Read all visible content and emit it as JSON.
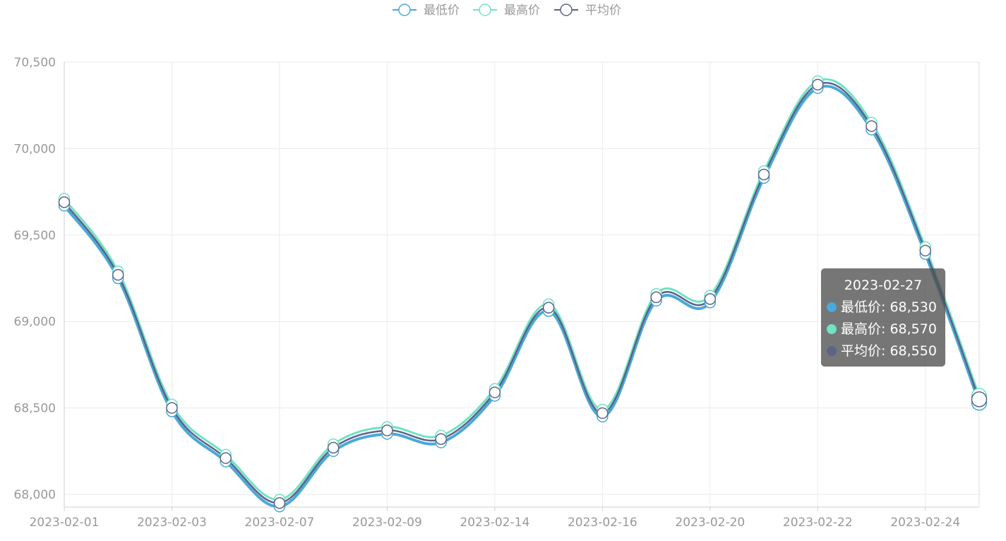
{
  "chart_data": {
    "type": "line",
    "smooth": true,
    "x": [
      "2023-02-01",
      "2023-02-02",
      "2023-02-03",
      "2023-02-06",
      "2023-02-07",
      "2023-02-08",
      "2023-02-09",
      "2023-02-10",
      "2023-02-14",
      "2023-02-15",
      "2023-02-16",
      "2023-02-17",
      "2023-02-20",
      "2023-02-21",
      "2023-02-22",
      "2023-02-23",
      "2023-02-24",
      "2023-02-27"
    ],
    "x_tick_labels": [
      "2023-02-01",
      "2023-02-03",
      "2023-02-07",
      "2023-02-09",
      "2023-02-14",
      "2023-02-16",
      "2023-02-20",
      "2023-02-22",
      "2023-02-24"
    ],
    "series": [
      {
        "name": "最低价",
        "color": "#4aa9d8",
        "values": [
          69670,
          69250,
          68480,
          68190,
          67930,
          68250,
          68350,
          68300,
          68570,
          69060,
          68450,
          69120,
          69110,
          69830,
          70350,
          70110,
          69390,
          68530
        ]
      },
      {
        "name": "最高价",
        "color": "#6fe3c4",
        "values": [
          69710,
          69290,
          68520,
          68230,
          67970,
          68290,
          68390,
          68340,
          68610,
          69100,
          68490,
          69160,
          69150,
          69870,
          70390,
          70150,
          69430,
          68570
        ]
      },
      {
        "name": "平均价",
        "color": "#5d6287",
        "values": [
          69690,
          69270,
          68500,
          68210,
          67950,
          68270,
          68370,
          68320,
          68590,
          69080,
          68470,
          69140,
          69130,
          69850,
          70370,
          70130,
          69410,
          68550
        ]
      }
    ],
    "ylim": [
      67950,
      70500
    ],
    "y_ticks": [
      68000,
      68500,
      69000,
      69500,
      70000,
      70500
    ],
    "y_tick_labels": [
      "68,000",
      "68,500",
      "69,000",
      "69,500",
      "70,000",
      "70,500"
    ],
    "grid": true,
    "legend": "top-center"
  },
  "tooltip": {
    "title": "2023-02-27",
    "rows": [
      {
        "label": "最低价: 68,530",
        "color": "#4aa9d8"
      },
      {
        "label": "最高价: 68,570",
        "color": "#6fe3c4"
      },
      {
        "label": "平均价: 68,550",
        "color": "#5d6287"
      }
    ]
  }
}
